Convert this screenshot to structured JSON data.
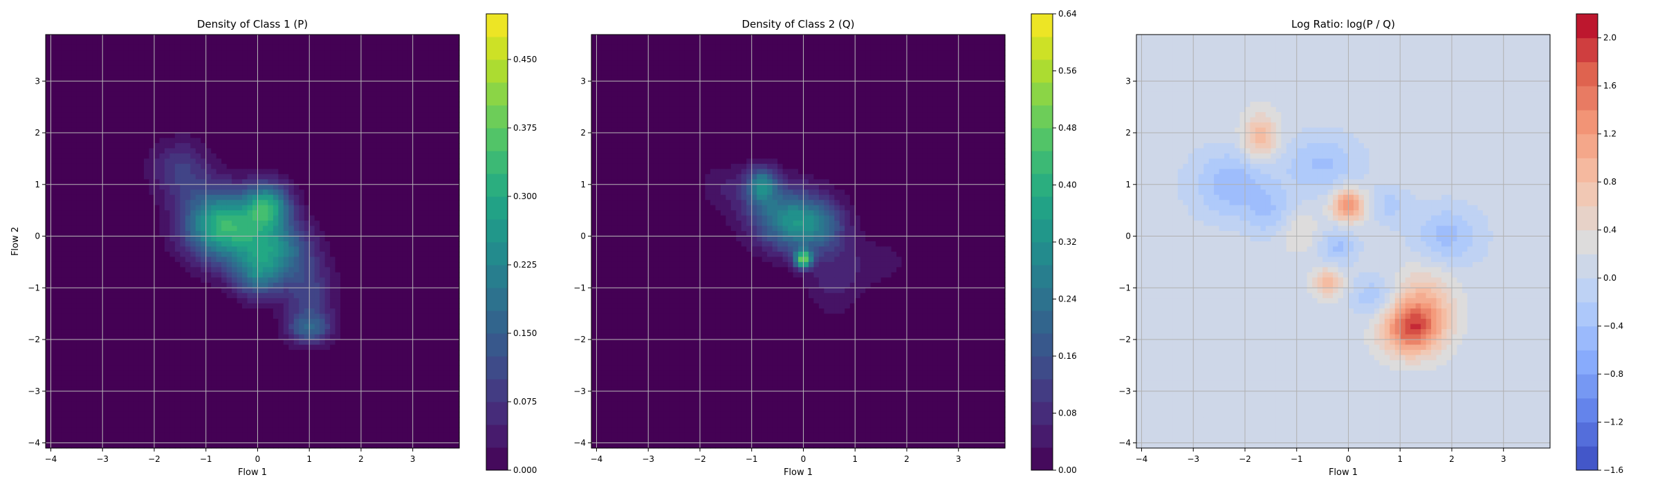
{
  "chart_data": [
    {
      "type": "heatmap",
      "title": "Density of Class 1 (P)",
      "xlabel": "Flow 1",
      "ylabel": "Flow 2",
      "xlim": [
        -4.1,
        3.9
      ],
      "ylim": [
        -4.1,
        3.9
      ],
      "xticks": [
        -4,
        -3,
        -2,
        -1,
        0,
        1,
        2,
        3
      ],
      "yticks": [
        -4,
        -3,
        -2,
        -1,
        0,
        1,
        2,
        3
      ],
      "grid": true,
      "colormap": "viridis",
      "colorbar": {
        "range": [
          0,
          0.5
        ],
        "ticks": [
          "0.000",
          "0.075",
          "0.150",
          "0.225",
          "0.300",
          "0.375",
          "0.450"
        ]
      },
      "blobs": [
        {
          "x": -0.8,
          "y": 0.3,
          "sx": 0.5,
          "sy": 0.45,
          "a": 0.22
        },
        {
          "x": 0.2,
          "y": 0.6,
          "sx": 0.3,
          "sy": 0.3,
          "a": 0.25
        },
        {
          "x": -0.3,
          "y": 0.0,
          "sx": 0.6,
          "sy": 0.5,
          "a": 0.18
        },
        {
          "x": 0.4,
          "y": -0.3,
          "sx": 0.45,
          "sy": 0.4,
          "a": 0.17
        },
        {
          "x": -1.5,
          "y": 1.3,
          "sx": 0.4,
          "sy": 0.4,
          "a": 0.1
        },
        {
          "x": 1.0,
          "y": -1.2,
          "sx": 0.35,
          "sy": 0.5,
          "a": 0.11
        },
        {
          "x": 1.0,
          "y": -1.8,
          "sx": 0.3,
          "sy": 0.2,
          "a": 0.13
        },
        {
          "x": 0.0,
          "y": -0.8,
          "sx": 0.3,
          "sy": 0.3,
          "a": 0.14
        }
      ]
    },
    {
      "type": "heatmap",
      "title": "Density of Class 2 (Q)",
      "xlabel": "Flow 1",
      "ylabel": "",
      "xlim": [
        -4.1,
        3.9
      ],
      "ylim": [
        -4.1,
        3.9
      ],
      "xticks": [
        -4,
        -3,
        -2,
        -1,
        0,
        1,
        2,
        3
      ],
      "yticks": [
        -4,
        -3,
        -2,
        -1,
        0,
        1,
        2,
        3
      ],
      "grid": true,
      "colormap": "viridis",
      "colorbar": {
        "range": [
          0,
          0.64
        ],
        "ticks": [
          "0.00",
          "0.08",
          "0.16",
          "0.24",
          "0.32",
          "0.40",
          "0.48",
          "0.56",
          "0.64"
        ]
      },
      "blobs": [
        {
          "x": 0.0,
          "y": -0.45,
          "sx": 0.12,
          "sy": 0.12,
          "a": 0.45
        },
        {
          "x": -0.3,
          "y": 0.2,
          "sx": 0.45,
          "sy": 0.4,
          "a": 0.2
        },
        {
          "x": -0.8,
          "y": 1.0,
          "sx": 0.2,
          "sy": 0.25,
          "a": 0.25
        },
        {
          "x": 0.3,
          "y": 0.2,
          "sx": 0.4,
          "sy": 0.35,
          "a": 0.18
        },
        {
          "x": -0.5,
          "y": 0.6,
          "sx": 0.6,
          "sy": 0.4,
          "a": 0.12
        },
        {
          "x": 0.6,
          "y": -0.8,
          "sx": 0.4,
          "sy": 0.5,
          "a": 0.08
        },
        {
          "x": 1.5,
          "y": -0.5,
          "sx": 0.4,
          "sy": 0.3,
          "a": 0.05
        },
        {
          "x": -1.5,
          "y": 1.0,
          "sx": 0.4,
          "sy": 0.3,
          "a": 0.05
        }
      ]
    },
    {
      "type": "heatmap",
      "title": "Log Ratio: log(P / Q)",
      "xlabel": "Flow 1",
      "ylabel": "",
      "xlim": [
        -4.1,
        3.9
      ],
      "ylim": [
        -4.1,
        3.9
      ],
      "xticks": [
        -4,
        -3,
        -2,
        -1,
        0,
        1,
        2,
        3
      ],
      "yticks": [
        -4,
        -3,
        -2,
        -1,
        0,
        1,
        2,
        3
      ],
      "grid": true,
      "colormap": "coolwarm",
      "colorbar": {
        "range": [
          -1.6,
          2.2
        ],
        "ticks": [
          "-1.6",
          "-1.2",
          "-0.8",
          "-0.4",
          "0.0",
          "0.4",
          "0.8",
          "1.2",
          "1.6",
          "2.0"
        ]
      },
      "background": 0.2,
      "blobs": [
        {
          "x": 1.2,
          "y": -1.8,
          "sx": 0.4,
          "sy": 0.35,
          "a": 1.5
        },
        {
          "x": 1.5,
          "y": -1.3,
          "sx": 0.4,
          "sy": 0.5,
          "a": 0.7
        },
        {
          "x": 0.0,
          "y": 0.6,
          "sx": 0.22,
          "sy": 0.22,
          "a": 1.3
        },
        {
          "x": -1.7,
          "y": 1.9,
          "sx": 0.25,
          "sy": 0.35,
          "a": 0.8
        },
        {
          "x": -0.4,
          "y": -0.9,
          "sx": 0.2,
          "sy": 0.2,
          "a": 0.8
        },
        {
          "x": -2.2,
          "y": 1.0,
          "sx": 0.55,
          "sy": 0.45,
          "a": -0.65
        },
        {
          "x": -0.5,
          "y": 1.4,
          "sx": 0.5,
          "sy": 0.4,
          "a": -0.5
        },
        {
          "x": 1.9,
          "y": 0.0,
          "sx": 0.45,
          "sy": 0.4,
          "a": -0.55
        },
        {
          "x": 0.5,
          "y": -1.2,
          "sx": 0.3,
          "sy": 0.3,
          "a": -0.45
        },
        {
          "x": -0.2,
          "y": -0.2,
          "sx": 0.25,
          "sy": 0.25,
          "a": -0.5
        },
        {
          "x": -1.5,
          "y": 0.4,
          "sx": 0.3,
          "sy": 0.3,
          "a": -0.4
        },
        {
          "x": 0.8,
          "y": 0.6,
          "sx": 0.25,
          "sy": 0.25,
          "a": -0.35
        },
        {
          "x": -1.0,
          "y": 0.1,
          "sx": 0.3,
          "sy": 0.3,
          "a": 0.3
        }
      ]
    }
  ]
}
